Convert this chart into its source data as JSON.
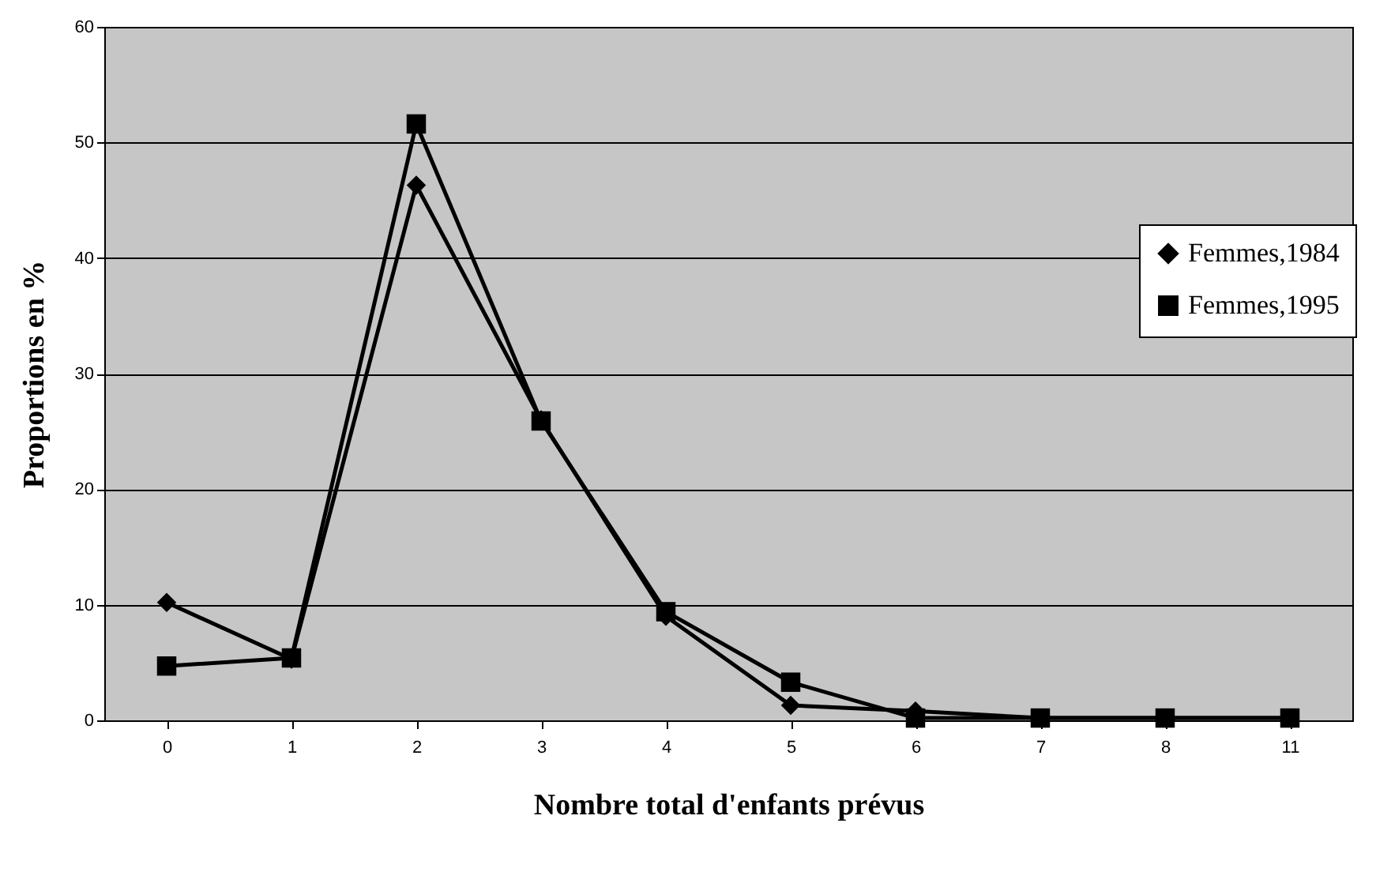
{
  "chart_data": {
    "type": "line",
    "xlabel": "Nombre total d'enfants prévus",
    "ylabel": "Proportions en %",
    "categories": [
      "0",
      "1",
      "2",
      "3",
      "4",
      "5",
      "6",
      "7",
      "8",
      "11"
    ],
    "series": [
      {
        "name": "Femmes,1984",
        "color": "#000000",
        "marker": "diamond",
        "values": [
          10.2,
          5.3,
          46.3,
          26,
          9,
          1.3,
          0.8,
          0.2,
          0.2,
          0.2
        ]
      },
      {
        "name": "Femmes,1995",
        "color": "#000000",
        "marker": "square",
        "values": [
          4.7,
          5.4,
          51.6,
          25.9,
          9.4,
          3.3,
          0.2,
          0.2,
          0.2,
          0.2
        ]
      }
    ],
    "ylim": [
      0,
      60
    ],
    "yticks": [
      0,
      10,
      20,
      30,
      40,
      50,
      60
    ],
    "grid": "y",
    "legend": "right",
    "line_style": "solid"
  }
}
